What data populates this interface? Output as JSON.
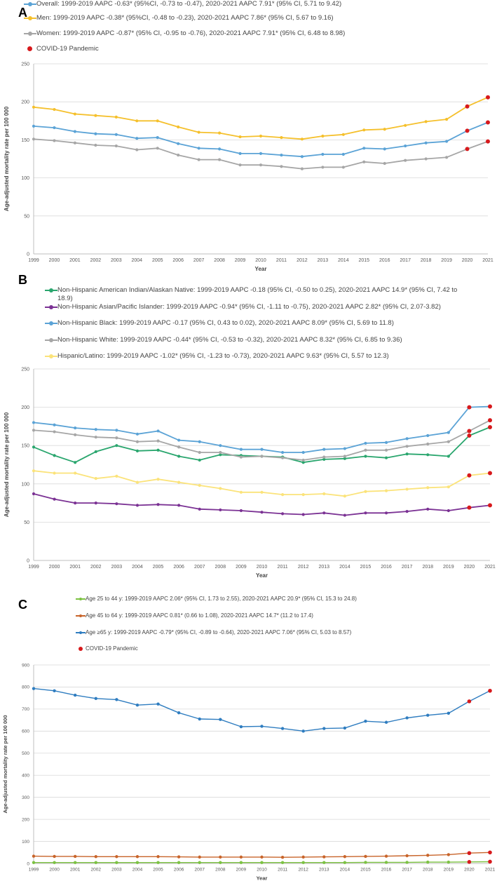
{
  "chart_data": [
    {
      "type": "line",
      "panel": "A",
      "xlabel": "Year",
      "ylabel": "Age-adjusted mortality rate per 100 000",
      "ylim": [
        0,
        250
      ],
      "yticks": [
        0,
        50,
        100,
        150,
        200,
        250
      ],
      "x": [
        "1999",
        "2000",
        "2001",
        "2002",
        "2003",
        "2004",
        "2005",
        "2006",
        "2007",
        "2008",
        "2009",
        "2010",
        "2011",
        "2012",
        "2013",
        "2014",
        "2015",
        "2016",
        "2017",
        "2018",
        "2019",
        "2020",
        "2021"
      ],
      "series": [
        {
          "name": "Overall: 1999-2019 AAPC -0.63* (95%CI, -0.73 to -0.47), 2020-2021 AAPC 7.91* (95% CI, 5.71 to 9.42)",
          "color": "#5ba3d6",
          "values": [
            168,
            166,
            161,
            158,
            157,
            152,
            153,
            145,
            139,
            138,
            132,
            132,
            130,
            128,
            131,
            131,
            139,
            138,
            142,
            146,
            148,
            162,
            173
          ]
        },
        {
          "name": "Men: 1999-2019 AAPC -0.38* (95%CI, -0.48 to -0.23), 2020-2021 AAPC 7.86* (95% CI, 5.67 to 9.16)",
          "color": "#f5c02c",
          "values": [
            193,
            190,
            184,
            182,
            180,
            175,
            175,
            167,
            160,
            159,
            154,
            155,
            153,
            151,
            155,
            157,
            163,
            164,
            169,
            174,
            177,
            194,
            206
          ]
        },
        {
          "name": "Women: 1999-2019 AAPC -0.87* (95% CI, -0.95 to -0.76), 2020-2021 AAPC 7.91* (95% CI, 6.48 to 8.98)",
          "color": "#a6a6a6",
          "values": [
            151,
            149,
            146,
            143,
            142,
            137,
            139,
            130,
            124,
            124,
            117,
            117,
            115,
            112,
            114,
            114,
            121,
            119,
            123,
            125,
            127,
            138,
            148
          ]
        }
      ],
      "covid_label": "COVID-19 Pandemic",
      "covid_years": [
        "2020",
        "2021"
      ]
    },
    {
      "type": "line",
      "panel": "B",
      "xlabel": "Year",
      "ylabel": "Age-adjusted mortality rate per 100 000",
      "ylim": [
        0,
        250
      ],
      "yticks": [
        0,
        50,
        100,
        150,
        200,
        250
      ],
      "x": [
        "1999",
        "2000",
        "2001",
        "2002",
        "2003",
        "2004",
        "2005",
        "2006",
        "2007",
        "2008",
        "2009",
        "2010",
        "2011",
        "2012",
        "2013",
        "2014",
        "2015",
        "2016",
        "2017",
        "2018",
        "2019",
        "2020",
        "2021"
      ],
      "series": [
        {
          "name": "Non-Hispanic American Indian/Alaskan Native: 1999-2019 AAPC -0.18 (95% CI, -0.50 to 0.25), 2020-2021 AAPC 14.9* (95% CI, 7.42 to",
          "name_cont": "18.9)",
          "color": "#2aa66e",
          "values": [
            148,
            137,
            128,
            142,
            150,
            143,
            144,
            136,
            131,
            138,
            137,
            136,
            135,
            128,
            132,
            133,
            136,
            134,
            139,
            138,
            136,
            163,
            174
          ]
        },
        {
          "name": "Non-Hispanic Asian/Pacific Islander: 1999-2019 AAPC -0.94* (95% CI, -1.11 to -0.75), 2020-2021 AAPC 2.82* (95% CI, 2.07-3.82)",
          "color": "#7b3294",
          "values": [
            87,
            80,
            75,
            75,
            74,
            72,
            73,
            72,
            67,
            66,
            65,
            63,
            61,
            60,
            62,
            59,
            62,
            62,
            64,
            67,
            65,
            69,
            72
          ]
        },
        {
          "name": "Non-Hispanic Black: 1999-2019 AAPC -0.17 (95% CI, 0.43 to 0.02), 2020-2021 AAPC 8.09* (95% CI, 5.69 to 11.8)",
          "color": "#5ba3d6",
          "values": [
            180,
            177,
            173,
            171,
            170,
            165,
            169,
            157,
            155,
            150,
            145,
            145,
            141,
            141,
            145,
            146,
            153,
            154,
            159,
            163,
            167,
            200,
            201
          ]
        },
        {
          "name": "Non-Hispanic White: 1999-2019 AAPC -0.44* (95% CI, -0.53 to -0.32), 2020-2021 AAPC 8.32* (95% CI, 6.85 to 9.36)",
          "color": "#a6a6a6",
          "values": [
            170,
            168,
            164,
            161,
            160,
            155,
            156,
            148,
            141,
            141,
            135,
            136,
            134,
            131,
            135,
            136,
            144,
            144,
            149,
            152,
            155,
            169,
            183
          ]
        },
        {
          "name": "Hispanic/Latino: 1999-2019 AAPC -1.02* (95% CI, -1.23 to -0.73), 2020-2021 AAPC 9.63* (95% CI, 5.57 to 12.3)",
          "color": "#fbe37a",
          "values": [
            117,
            114,
            114,
            107,
            110,
            102,
            106,
            102,
            98,
            94,
            89,
            89,
            86,
            86,
            87,
            84,
            90,
            91,
            93,
            95,
            96,
            111,
            114
          ]
        }
      ],
      "covid_years": [
        "2020",
        "2021"
      ]
    },
    {
      "type": "line",
      "panel": "C",
      "xlabel": "Year",
      "ylabel": "Age-adjusted mortality rate per 100 000",
      "ylim": [
        0,
        900
      ],
      "yticks": [
        0,
        100,
        200,
        300,
        400,
        500,
        600,
        700,
        800,
        900
      ],
      "x": [
        "1999",
        "2000",
        "2001",
        "2002",
        "2003",
        "2004",
        "2005",
        "2006",
        "2007",
        "2008",
        "2009",
        "2010",
        "2011",
        "2012",
        "2013",
        "2014",
        "2015",
        "2016",
        "2017",
        "2018",
        "2019",
        "2020",
        "2021"
      ],
      "series": [
        {
          "name": "Age 25 to 44 y: 1999-2019 AAPC 2.06* (95% CI, 1.73 to 2.55), 2020-2021 AAPC 20.9* (95% CI, 15.3 to 24.8)",
          "color": "#7cc242",
          "values": [
            4,
            4,
            4,
            4,
            4,
            4,
            4,
            4,
            4,
            4,
            4,
            4,
            4,
            4,
            4,
            4,
            5,
            5,
            5,
            6,
            6,
            7,
            8
          ]
        },
        {
          "name": "Age 45 to 64 y: 1999-2019 AAPC 0.81* (0.66 to 1.08), 2020-2021 AAPC 14.7* (11.2 to 17.4)",
          "color": "#c8642a",
          "values": [
            33,
            32,
            32,
            31,
            31,
            31,
            31,
            30,
            29,
            29,
            29,
            29,
            28,
            29,
            30,
            31,
            32,
            33,
            35,
            37,
            40,
            47,
            50
          ]
        },
        {
          "name": "Age ≥65 y: 1999-2019 AAPC -0.79* (95% CI, -0.89 to -0.64), 2020-2021 AAPC 7.06* (95% CI, 5.03 to 8.57)",
          "color": "#2f7dc0",
          "values": [
            793,
            783,
            763,
            748,
            743,
            718,
            723,
            683,
            655,
            653,
            620,
            622,
            612,
            600,
            612,
            614,
            645,
            640,
            660,
            672,
            681,
            735,
            783
          ]
        }
      ],
      "covid_label": "COVID-19 Pandemic",
      "covid_years": [
        "2020",
        "2021"
      ]
    }
  ],
  "panels": {
    "A": {
      "letter": "A"
    },
    "B": {
      "letter": "B"
    },
    "C": {
      "letter": "C"
    }
  },
  "colors": {
    "covid": "#d7191c",
    "axis": "#bfbfbf",
    "grid": "#d9d9d9",
    "tick": "#595959"
  }
}
